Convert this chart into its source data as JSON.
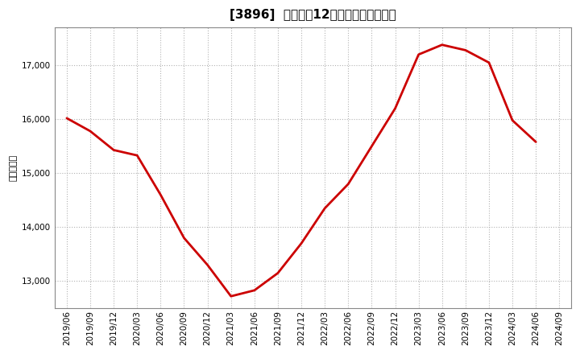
{
  "title": "[3896]  売上高の12か月移動合計の推移",
  "ylabel": "（百万円）",
  "line_color": "#cc0000",
  "background_color": "#ffffff",
  "plot_bg_color": "#ffffff",
  "grid_color": "#aaaaaa",
  "dates": [
    "2019/06",
    "2019/09",
    "2019/12",
    "2020/03",
    "2020/06",
    "2020/09",
    "2020/12",
    "2021/03",
    "2021/06",
    "2021/09",
    "2021/12",
    "2022/03",
    "2022/06",
    "2022/09",
    "2022/12",
    "2023/03",
    "2023/06",
    "2023/09",
    "2023/12",
    "2024/03",
    "2024/06",
    "2024/09"
  ],
  "values": [
    16020,
    15780,
    15430,
    15330,
    14600,
    13800,
    13300,
    12720,
    12830,
    13150,
    13700,
    14350,
    14800,
    15500,
    16200,
    17200,
    17380,
    17280,
    17050,
    15980,
    15580,
    null
  ],
  "yticks": [
    13000,
    14000,
    15000,
    16000,
    17000
  ],
  "ylim": [
    12500,
    17700
  ],
  "title_fontsize": 11,
  "axis_fontsize": 7.5,
  "ylabel_fontsize": 8
}
